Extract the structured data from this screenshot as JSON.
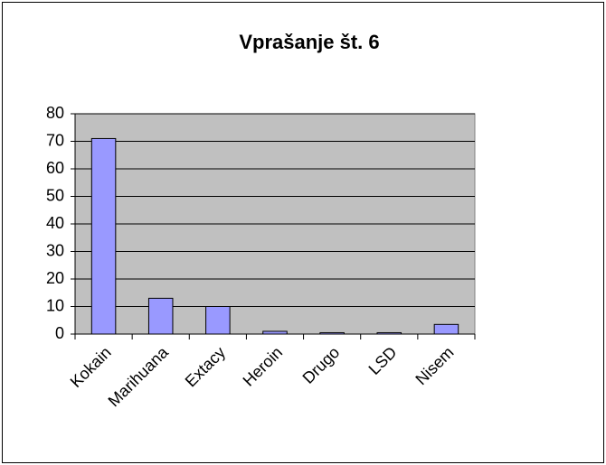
{
  "chart_data": {
    "type": "bar",
    "title": "Vprašanje št. 6",
    "categories": [
      "Kokain",
      "Marihuana",
      "Extacy",
      "Heroin",
      "Drugo",
      "LSD",
      "Nisem"
    ],
    "values": [
      71,
      13,
      10,
      1,
      0.5,
      0.5,
      3.5
    ],
    "color": "#9999ff",
    "ylim": [
      0,
      80
    ],
    "yticks": [
      0,
      10,
      20,
      30,
      40,
      50,
      60,
      70,
      80
    ],
    "grid": true
  }
}
